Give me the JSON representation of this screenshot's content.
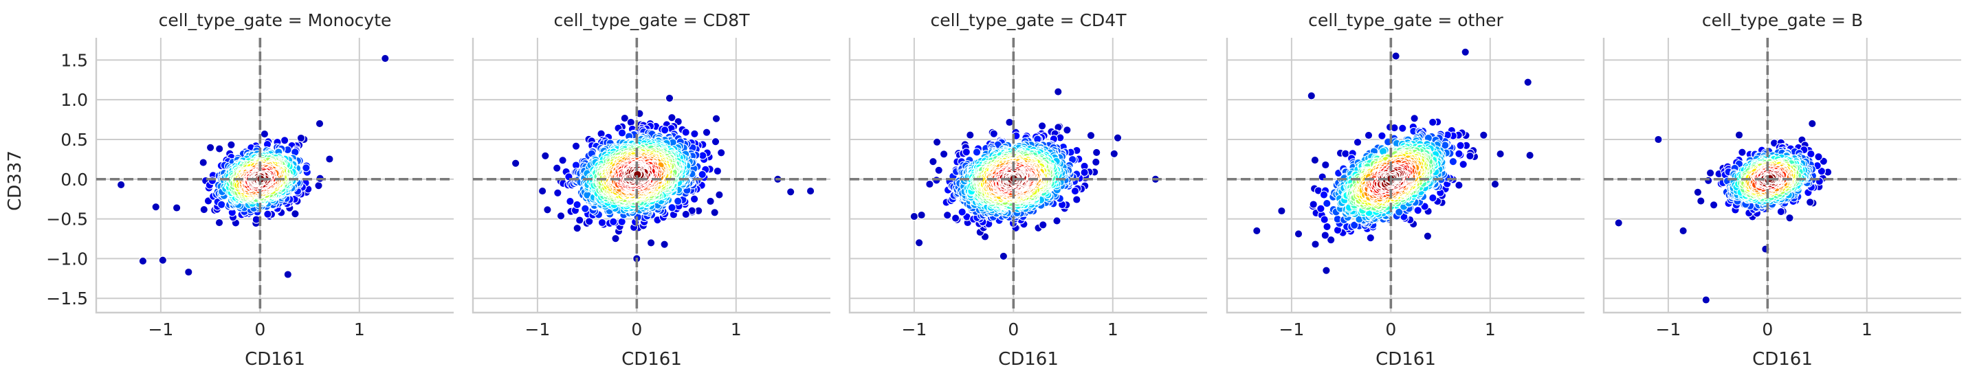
{
  "chart_data": {
    "type": "scatter",
    "facet_variable": "cell_type_gate",
    "xlabel": "CD161",
    "ylabel": "CD337",
    "xlim": [
      -1.65,
      1.95
    ],
    "ylim": [
      -1.68,
      1.78
    ],
    "x_ticks": [
      -1,
      0,
      1
    ],
    "y_ticks": [
      -1.5,
      -1.0,
      -0.5,
      0.0,
      0.5,
      1.0,
      1.5
    ],
    "x_tick_labels": [
      "−1",
      "0",
      "1"
    ],
    "y_tick_labels": [
      "−1.5",
      "−1.0",
      "−0.5",
      "0.0",
      "0.5",
      "1.0",
      "1.5"
    ],
    "reference_lines": {
      "x": 0,
      "y": 0,
      "style": "dashed",
      "color": "#7a7a7a"
    },
    "grid": true,
    "color_map": "jet (point density)",
    "panels": [
      {
        "title": "cell_type_gate = Monocyte",
        "n_points": 900,
        "center": [
          0.0,
          0.0
        ],
        "std": [
          0.2,
          0.18
        ],
        "correlation": 0.25,
        "outliers": [
          [
            1.26,
            1.52
          ],
          [
            -1.4,
            -0.07
          ],
          [
            -1.18,
            -1.03
          ],
          [
            -0.98,
            -1.02
          ],
          [
            -0.72,
            -1.17
          ],
          [
            0.28,
            -1.2
          ],
          [
            0.6,
            0.7
          ],
          [
            -1.05,
            -0.35
          ]
        ]
      },
      {
        "title": "cell_type_gate = CD8T",
        "n_points": 1500,
        "center": [
          0.0,
          0.05
        ],
        "std": [
          0.28,
          0.24
        ],
        "correlation": 0.2,
        "outliers": [
          [
            -1.22,
            0.2
          ],
          [
            1.75,
            -0.15
          ],
          [
            1.55,
            -0.16
          ],
          [
            1.42,
            0.0
          ],
          [
            0.0,
            -1.0
          ],
          [
            0.33,
            1.02
          ],
          [
            -0.95,
            -0.15
          ]
        ]
      },
      {
        "title": "cell_type_gate = CD4T",
        "n_points": 1500,
        "center": [
          0.0,
          0.0
        ],
        "std": [
          0.27,
          0.22
        ],
        "correlation": 0.2,
        "outliers": [
          [
            1.43,
            0.0
          ],
          [
            0.45,
            1.1
          ],
          [
            -1.0,
            -0.47
          ],
          [
            -0.95,
            -0.8
          ],
          [
            0.78,
            0.55
          ],
          [
            -0.1,
            -0.97
          ],
          [
            1.05,
            0.52
          ]
        ]
      },
      {
        "title": "cell_type_gate = other",
        "n_points": 1100,
        "center": [
          0.0,
          0.0
        ],
        "std": [
          0.28,
          0.26
        ],
        "correlation": 0.5,
        "outliers": [
          [
            1.38,
            1.22
          ],
          [
            1.4,
            0.3
          ],
          [
            0.75,
            1.6
          ],
          [
            -1.35,
            -0.65
          ],
          [
            -0.8,
            1.05
          ],
          [
            -1.1,
            -0.4
          ],
          [
            -0.65,
            -1.15
          ],
          [
            0.05,
            1.55
          ]
        ]
      },
      {
        "title": "cell_type_gate = B",
        "n_points": 700,
        "center": [
          0.02,
          0.0
        ],
        "std": [
          0.2,
          0.16
        ],
        "correlation": 0.25,
        "outliers": [
          [
            -0.62,
            -1.52
          ],
          [
            -1.5,
            -0.55
          ],
          [
            -1.1,
            0.5
          ],
          [
            0.45,
            0.7
          ],
          [
            -0.85,
            -0.65
          ],
          [
            -0.02,
            -0.88
          ]
        ]
      }
    ]
  }
}
